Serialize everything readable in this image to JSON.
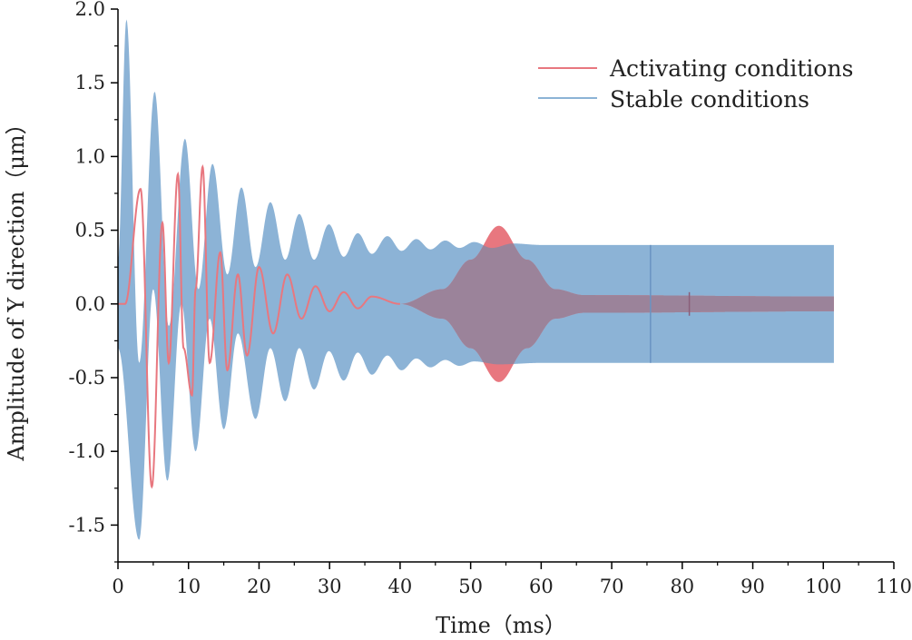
{
  "chart_data": {
    "type": "line",
    "title": "",
    "xlabel": "Time（ms）",
    "ylabel": "Amplitude of Y direction（μm）",
    "xlim": [
      0,
      110
    ],
    "ylim": [
      -1.75,
      2.0
    ],
    "x_ticks": [
      "0",
      "10",
      "20",
      "30",
      "40",
      "50",
      "60",
      "70",
      "80",
      "90",
      "100",
      "110"
    ],
    "y_ticks": [
      "-1.5",
      "-1.0",
      "-0.5",
      "0.0",
      "0.5",
      "1.0",
      "1.5",
      "2.0"
    ],
    "legend_position": "top-right",
    "series": [
      {
        "name": "Activating conditions",
        "color": "#e8777f",
        "extrema": [
          {
            "t": 0.0,
            "y": 0.0
          },
          {
            "t": 1.0,
            "y": 0.0
          },
          {
            "t": 3.2,
            "y": 0.78
          },
          {
            "t": 4.8,
            "y": -1.24
          },
          {
            "t": 6.3,
            "y": 0.55
          },
          {
            "t": 7.2,
            "y": -0.4
          },
          {
            "t": 8.5,
            "y": 0.88
          },
          {
            "t": 9.3,
            "y": -0.3
          },
          {
            "t": 10.5,
            "y": -0.62
          },
          {
            "t": 11.0,
            "y": 0.1
          },
          {
            "t": 12.0,
            "y": 0.93
          },
          {
            "t": 13.0,
            "y": -0.4
          },
          {
            "t": 14.5,
            "y": 0.35
          },
          {
            "t": 15.5,
            "y": -0.45
          },
          {
            "t": 17.0,
            "y": 0.2
          },
          {
            "t": 18.3,
            "y": -0.35
          },
          {
            "t": 20.0,
            "y": 0.25
          },
          {
            "t": 22.0,
            "y": -0.2
          },
          {
            "t": 24.0,
            "y": 0.2
          },
          {
            "t": 26.0,
            "y": -0.1
          },
          {
            "t": 28.0,
            "y": 0.12
          },
          {
            "t": 30.0,
            "y": -0.05
          },
          {
            "t": 32.0,
            "y": 0.08
          },
          {
            "t": 34.0,
            "y": -0.03
          },
          {
            "t": 36.0,
            "y": 0.05
          },
          {
            "t": 40.0,
            "y": 0.0
          }
        ],
        "envelope": [
          {
            "t": 40.0,
            "a": 0.0
          },
          {
            "t": 46.0,
            "a": 0.1
          },
          {
            "t": 50.0,
            "a": 0.3
          },
          {
            "t": 54.0,
            "a": 0.53
          },
          {
            "t": 58.0,
            "a": 0.3
          },
          {
            "t": 62.0,
            "a": 0.1
          },
          {
            "t": 66.0,
            "a": 0.06
          },
          {
            "t": 101.5,
            "a": 0.05
          }
        ]
      },
      {
        "name": "Stable conditions",
        "color": "#8cb3d6",
        "envelope_upper": [
          {
            "t": 0.0,
            "y": 0.3
          },
          {
            "t": 1.2,
            "y": 1.93
          },
          {
            "t": 3.0,
            "y": -0.4
          },
          {
            "t": 5.2,
            "y": 1.44
          },
          {
            "t": 7.2,
            "y": -0.15
          },
          {
            "t": 9.5,
            "y": 1.12
          },
          {
            "t": 11.4,
            "y": 0.1
          },
          {
            "t": 13.4,
            "y": 0.95
          },
          {
            "t": 15.5,
            "y": 0.2
          },
          {
            "t": 17.5,
            "y": 0.79
          },
          {
            "t": 19.5,
            "y": 0.25
          },
          {
            "t": 21.6,
            "y": 0.69
          },
          {
            "t": 23.7,
            "y": 0.3
          },
          {
            "t": 25.7,
            "y": 0.61
          },
          {
            "t": 27.8,
            "y": 0.3
          },
          {
            "t": 29.9,
            "y": 0.54
          },
          {
            "t": 32.0,
            "y": 0.32
          },
          {
            "t": 34.0,
            "y": 0.48
          },
          {
            "t": 36.0,
            "y": 0.34
          },
          {
            "t": 38.2,
            "y": 0.46
          },
          {
            "t": 40.2,
            "y": 0.36
          },
          {
            "t": 42.3,
            "y": 0.44
          },
          {
            "t": 44.3,
            "y": 0.37
          },
          {
            "t": 46.4,
            "y": 0.43
          },
          {
            "t": 48.4,
            "y": 0.38
          },
          {
            "t": 50.5,
            "y": 0.42
          },
          {
            "t": 53.0,
            "y": 0.38
          },
          {
            "t": 56.0,
            "y": 0.41
          },
          {
            "t": 60.0,
            "y": 0.4
          },
          {
            "t": 101.5,
            "y": 0.4
          }
        ],
        "envelope_lower": [
          {
            "t": 0.0,
            "y": -0.3
          },
          {
            "t": 3.0,
            "y": -1.6
          },
          {
            "t": 5.0,
            "y": 0.1
          },
          {
            "t": 7.0,
            "y": -1.2
          },
          {
            "t": 9.0,
            "y": 0.0
          },
          {
            "t": 11.0,
            "y": -1.0
          },
          {
            "t": 13.0,
            "y": -0.1
          },
          {
            "t": 15.0,
            "y": -0.85
          },
          {
            "t": 17.0,
            "y": -0.2
          },
          {
            "t": 19.5,
            "y": -0.78
          },
          {
            "t": 21.6,
            "y": -0.3
          },
          {
            "t": 23.7,
            "y": -0.66
          },
          {
            "t": 25.7,
            "y": -0.3
          },
          {
            "t": 27.8,
            "y": -0.58
          },
          {
            "t": 29.9,
            "y": -0.32
          },
          {
            "t": 32.0,
            "y": -0.52
          },
          {
            "t": 34.0,
            "y": -0.33
          },
          {
            "t": 36.0,
            "y": -0.48
          },
          {
            "t": 38.2,
            "y": -0.35
          },
          {
            "t": 40.2,
            "y": -0.45
          },
          {
            "t": 42.3,
            "y": -0.37
          },
          {
            "t": 44.3,
            "y": -0.43
          },
          {
            "t": 46.4,
            "y": -0.38
          },
          {
            "t": 48.4,
            "y": -0.42
          },
          {
            "t": 50.5,
            "y": -0.39
          },
          {
            "t": 54.0,
            "y": -0.41
          },
          {
            "t": 60.0,
            "y": -0.4
          },
          {
            "t": 101.5,
            "y": -0.4
          }
        ],
        "marker_lines": [
          {
            "t": 75.5,
            "ymin": -0.4,
            "ymax": 0.4
          }
        ]
      }
    ],
    "overlap_color": "#9b839a",
    "overlap_marker": {
      "t": 81.0,
      "ymin": -0.08,
      "ymax": 0.08
    }
  }
}
